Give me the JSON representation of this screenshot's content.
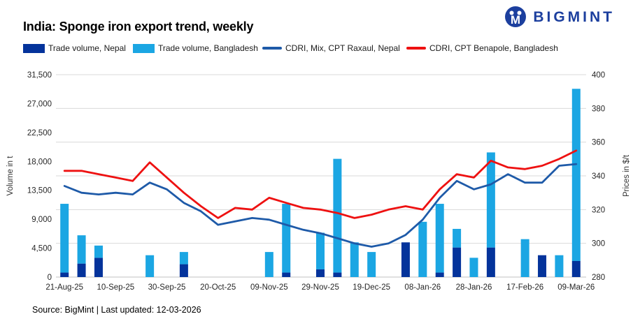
{
  "header": {
    "title": "India: Sponge iron export trend, weekly",
    "brand": "BIGMINT"
  },
  "legend": [
    {
      "label": "Trade volume, Nepal",
      "marker": "bar",
      "color": "#04339b"
    },
    {
      "label": "Trade volume, Bangladesh",
      "marker": "bar",
      "color": "#1ba6e3"
    },
    {
      "label": "CDRI, Mix, CPT Raxaul, Nepal",
      "marker": "line",
      "color": "#1e5aa8"
    },
    {
      "label": "CDRI, CPT Benapole, Bangladesh",
      "marker": "line",
      "color": "#ee1111"
    }
  ],
  "footer": {
    "text": "Source: BigMint | Last updated: 12-03-2026"
  },
  "chart_data": {
    "type": "bar",
    "subtype": "stacked bars (left axis) + two lines (right axis)",
    "title": "India: Sponge iron export trend, weekly",
    "n_points": 31,
    "label_interval": 3,
    "x_labels": [
      "21-Aug-25",
      "10-Sep-25",
      "30-Sep-25",
      "20-Oct-25",
      "09-Nov-25",
      "29-Nov-25",
      "19-Dec-25",
      "08-Jan-26",
      "28-Jan-26",
      "17-Feb-26",
      "09-Mar-26"
    ],
    "left_axis": {
      "title": "Volume in t",
      "min": 0,
      "max": 31500,
      "tick_labels": [
        "0",
        "4,500",
        "9,000",
        "13,500",
        "18,000",
        "22,500",
        "27,000",
        "31,500"
      ]
    },
    "right_axis": {
      "title": "Prices in $/t",
      "min": 280,
      "max": 400,
      "tick_labels": [
        "280",
        "300",
        "320",
        "340",
        "360",
        "380",
        "400"
      ]
    },
    "grid": "horizontal, on right-axis ticks",
    "legend_position": "top",
    "series": [
      {
        "name": "Trade volume, Nepal",
        "type": "bar",
        "axis": "left",
        "stack": "volume",
        "color": "#04339b",
        "values": [
          700,
          2100,
          3000,
          0,
          0,
          0,
          0,
          2000,
          0,
          0,
          0,
          0,
          0,
          700,
          0,
          1200,
          700,
          0,
          0,
          0,
          5400,
          0,
          700,
          4600,
          0,
          4600,
          0,
          0,
          3400,
          0,
          2500
        ]
      },
      {
        "name": "Trade volume, Bangladesh",
        "type": "bar",
        "axis": "left",
        "stack": "volume",
        "color": "#1ba6e3",
        "values": [
          10700,
          4400,
          1900,
          0,
          0,
          3400,
          0,
          1900,
          0,
          0,
          0,
          0,
          3900,
          10700,
          0,
          5700,
          17700,
          5400,
          3900,
          0,
          0,
          8600,
          10700,
          2900,
          3000,
          14800,
          0,
          5900,
          0,
          3400,
          26800
        ]
      },
      {
        "name": "CDRI, Mix, CPT Raxaul, Nepal",
        "type": "line",
        "axis": "right",
        "color": "#1e5aa8",
        "values": [
          334,
          330,
          329,
          330,
          329,
          336,
          332,
          324,
          319,
          311,
          313,
          315,
          314,
          311,
          308,
          306,
          303,
          300,
          298,
          300,
          305,
          314,
          327,
          337,
          332,
          335,
          341,
          336,
          336,
          346,
          347
        ]
      },
      {
        "name": "CDRI, CPT Benapole, Bangladesh",
        "type": "line",
        "axis": "right",
        "color": "#ee1111",
        "values": [
          343,
          343,
          341,
          339,
          337,
          348,
          339,
          330,
          322,
          315,
          321,
          320,
          327,
          324,
          321,
          320,
          318,
          315,
          317,
          320,
          322,
          320,
          332,
          341,
          339,
          349,
          345,
          344,
          346,
          350,
          355
        ]
      }
    ],
    "colors": {
      "grid": "#d9d9d9",
      "axis_line": "#c0c0c0",
      "axis_text": "#262626"
    }
  }
}
